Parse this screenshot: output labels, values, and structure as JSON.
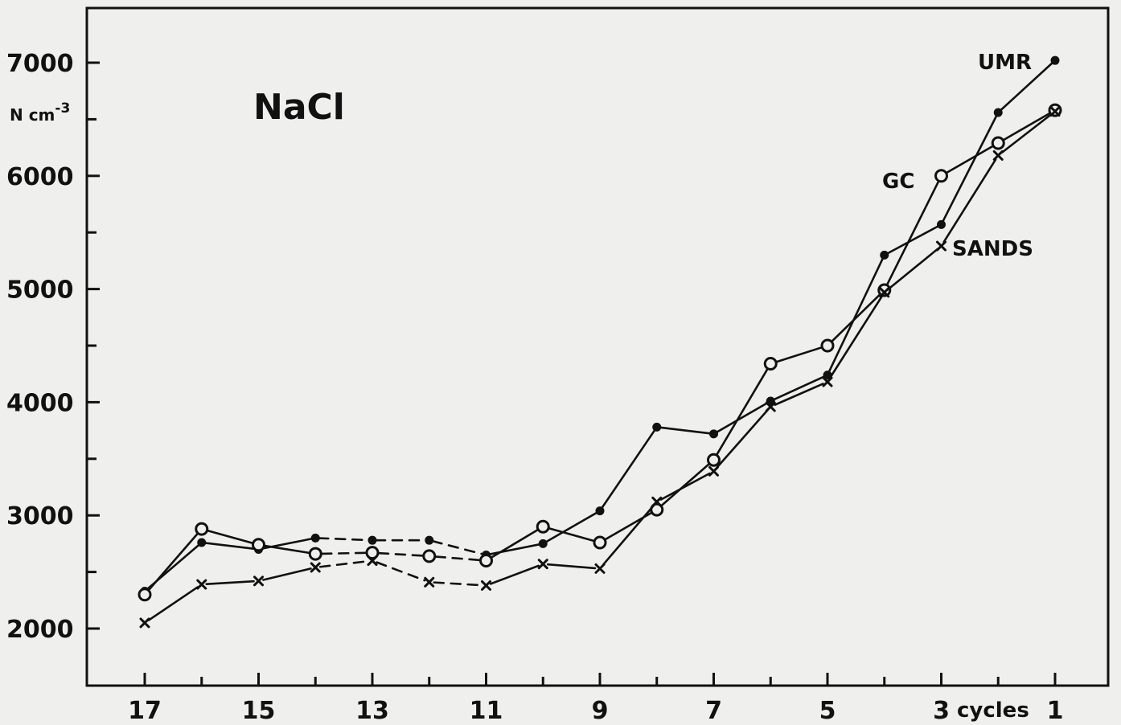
{
  "chart_data": {
    "type": "line",
    "title": "NaCl",
    "ylabel": "N cm-3",
    "xlabel": "cycles",
    "x_reversed": true,
    "xlim": [
      17,
      1
    ],
    "ylim": [
      2000,
      7000
    ],
    "x_ticks": [
      {
        "value": 17,
        "label": "17"
      },
      {
        "value": 15,
        "label": "15"
      },
      {
        "value": 13,
        "label": "13"
      },
      {
        "value": 11,
        "label": "11"
      },
      {
        "value": 9,
        "label": "9"
      },
      {
        "value": 7,
        "label": "7"
      },
      {
        "value": 5,
        "label": "5"
      },
      {
        "value": 3,
        "label": "3"
      },
      {
        "value": 1,
        "label": "1"
      }
    ],
    "y_ticks": [
      {
        "value": 2000,
        "label": "2000"
      },
      {
        "value": 3000,
        "label": "3000"
      },
      {
        "value": 4000,
        "label": "4000"
      },
      {
        "value": 5000,
        "label": "5000"
      },
      {
        "value": 6000,
        "label": "6000"
      },
      {
        "value": 7000,
        "label": "7000"
      }
    ],
    "y_minor_ticks": [
      2500,
      3500,
      4500,
      5500,
      6500
    ],
    "x": [
      17,
      16,
      15,
      14,
      13,
      12,
      11,
      10,
      9,
      8,
      7,
      6,
      5,
      4,
      3,
      2,
      1
    ],
    "dashed_segments": [
      [
        14,
        13
      ],
      [
        13,
        12
      ],
      [
        12,
        11
      ]
    ],
    "series": [
      {
        "name": "UMR",
        "marker": "dot",
        "values": [
          2330,
          2760,
          2700,
          2800,
          2780,
          2780,
          2650,
          2750,
          3040,
          3780,
          3720,
          4010,
          4240,
          5300,
          5570,
          6560,
          7020
        ]
      },
      {
        "name": "GC",
        "marker": "circle",
        "values": [
          2300,
          2880,
          2740,
          2660,
          2670,
          2640,
          2600,
          2900,
          2760,
          3050,
          3490,
          4340,
          4500,
          4990,
          6000,
          6290,
          6580
        ]
      },
      {
        "name": "SANDS",
        "marker": "x",
        "values": [
          2050,
          2390,
          2420,
          2540,
          2600,
          2410,
          2380,
          2570,
          2530,
          3120,
          3390,
          3960,
          4180,
          4970,
          5380,
          6180,
          6570
        ]
      }
    ]
  }
}
